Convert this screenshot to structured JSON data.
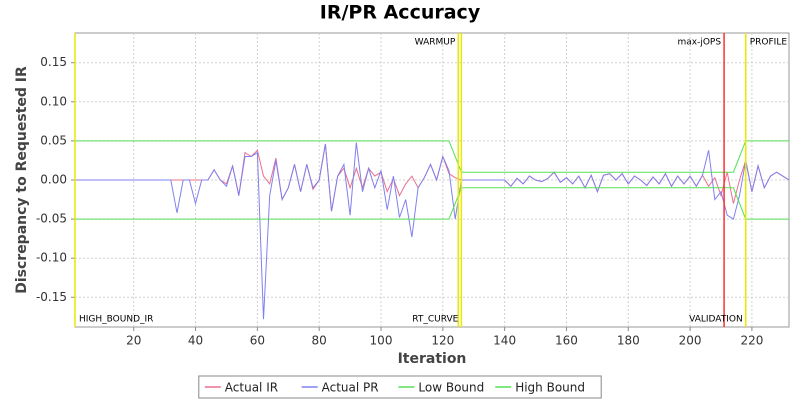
{
  "chart_data": {
    "type": "line",
    "title": "IR/PR Accuracy",
    "x_label": "Iteration",
    "y_label": "Discrepancy to Requested IR",
    "xlim": [
      1,
      232
    ],
    "ylim": [
      -0.188,
      0.188
    ],
    "xticks": [
      20,
      40,
      60,
      80,
      100,
      120,
      140,
      160,
      180,
      200,
      220
    ],
    "yticks": [
      -0.15,
      {
        "value": -0.1,
        "label": "-0.10"
      },
      -0.05,
      {
        "value": 0,
        "label": "0.00"
      },
      0.05,
      {
        "value": 0.1,
        "label": "0.10"
      },
      0.15
    ],
    "grid": true,
    "legend": "bottom",
    "x": [
      1,
      32,
      34,
      36,
      38,
      40,
      42,
      44,
      46,
      48,
      50,
      52,
      54,
      56,
      58,
      60,
      62,
      64,
      66,
      68,
      70,
      72,
      74,
      76,
      78,
      80,
      82,
      84,
      86,
      88,
      90,
      92,
      94,
      96,
      98,
      100,
      102,
      104,
      106,
      108,
      110,
      112,
      114,
      116,
      118,
      120,
      122,
      124,
      126,
      128,
      130,
      132,
      134,
      136,
      138,
      140,
      142,
      144,
      146,
      148,
      150,
      152,
      154,
      156,
      158,
      160,
      162,
      164,
      166,
      168,
      170,
      172,
      174,
      176,
      178,
      180,
      182,
      184,
      186,
      188,
      190,
      192,
      194,
      196,
      198,
      200,
      202,
      204,
      206,
      208,
      210,
      212,
      214,
      216,
      218,
      220,
      222,
      224,
      226,
      228,
      230,
      232
    ],
    "series": [
      {
        "name": "Actual IR",
        "color": "#e8708e",
        "values": [
          0,
          0,
          0,
          0,
          0,
          0,
          0,
          0,
          0.013,
          0,
          -0.005,
          0.018,
          -0.02,
          0.035,
          0.03,
          0.038,
          0.005,
          -0.005,
          0.028,
          -0.025,
          -0.01,
          0.02,
          -0.015,
          0.02,
          -0.012,
          0,
          0.046,
          -0.04,
          0.005,
          0.015,
          -0.01,
          0.015,
          -0.01,
          0.015,
          0.005,
          0.01,
          -0.015,
          0.002,
          -0.02,
          -0.005,
          0.005,
          -0.01,
          0.003,
          0.02,
          0,
          0.03,
          0.008,
          0.003,
          0,
          0,
          0,
          0,
          0,
          0,
          0,
          0,
          -0.008,
          0.002,
          -0.005,
          0.005,
          0,
          -0.002,
          0.002,
          0.01,
          -0.003,
          0.003,
          -0.005,
          0.005,
          -0.01,
          0.006,
          -0.015,
          0.006,
          0.008,
          0,
          0.008,
          -0.005,
          0.005,
          0,
          -0.007,
          0.004,
          -0.005,
          0.008,
          -0.008,
          0.005,
          -0.005,
          0.005,
          -0.008,
          0.006,
          -0.008,
          0.003,
          -0.02,
          0.01,
          -0.03,
          0,
          0.025,
          -0.015,
          0.018,
          -0.01,
          0.005,
          0.01,
          0.005,
          0
        ]
      },
      {
        "name": "Actual PR",
        "color": "#8080f0",
        "values": [
          0,
          0,
          -0.042,
          0,
          0,
          -0.03,
          0,
          0,
          0.013,
          0,
          -0.008,
          0.018,
          -0.02,
          0.03,
          0.03,
          0.035,
          -0.178,
          -0.02,
          0.025,
          -0.025,
          -0.01,
          0.02,
          -0.015,
          0.02,
          -0.01,
          0,
          0.046,
          -0.04,
          0.005,
          0.02,
          -0.045,
          0.048,
          -0.015,
          0.015,
          -0.01,
          0.012,
          -0.038,
          0.005,
          -0.048,
          -0.025,
          -0.073,
          -0.01,
          0.003,
          0.02,
          0,
          0.03,
          0.012,
          -0.05,
          0,
          0,
          0,
          0,
          0,
          0,
          0,
          0,
          -0.008,
          0.002,
          -0.005,
          0.005,
          0,
          -0.002,
          0.002,
          0.01,
          -0.003,
          0.003,
          -0.005,
          0.005,
          -0.01,
          0.006,
          -0.015,
          0.006,
          0.008,
          0,
          0.008,
          -0.005,
          0.005,
          0,
          -0.007,
          0.004,
          -0.005,
          0.008,
          -0.008,
          0.005,
          -0.005,
          0.005,
          -0.008,
          0.006,
          0.038,
          -0.025,
          -0.015,
          -0.045,
          -0.05,
          -0.02,
          0.025,
          -0.015,
          0.018,
          -0.01,
          0.005,
          0.01,
          0.005,
          0
        ]
      },
      {
        "name": "Low Bound",
        "color": "#55e055",
        "x": [
          1,
          122,
          126,
          214,
          218,
          232
        ],
        "values": [
          -0.05,
          -0.05,
          -0.01,
          -0.01,
          -0.05,
          -0.05
        ]
      },
      {
        "name": "High Bound",
        "color": "#55e055",
        "x": [
          1,
          122,
          126,
          214,
          218,
          232
        ],
        "values": [
          0.05,
          0.05,
          0.01,
          0.01,
          0.05,
          0.05
        ]
      }
    ],
    "markers": [
      {
        "x": 1,
        "color": "#e8e800",
        "label": "HIGH_BOUND_IR",
        "position": "bottom",
        "side": "right"
      },
      {
        "x": 125,
        "color": "#e8e800",
        "label": "WARMUP",
        "position": "top",
        "side": "left"
      },
      {
        "x": 126,
        "color": "#e8e800",
        "label": "RT_CURVE",
        "position": "bottom",
        "side": "left"
      },
      {
        "x": 211,
        "color": "#ff3030",
        "label": "max-jOPS",
        "position": "top",
        "side": "left"
      },
      {
        "x": 218,
        "color": "#e8e800",
        "label": "PROFILE",
        "position": "top",
        "side": "right"
      },
      {
        "x": 218,
        "color": "#e8e800",
        "label": "VALIDATION",
        "position": "bottom",
        "side": "left"
      }
    ]
  }
}
